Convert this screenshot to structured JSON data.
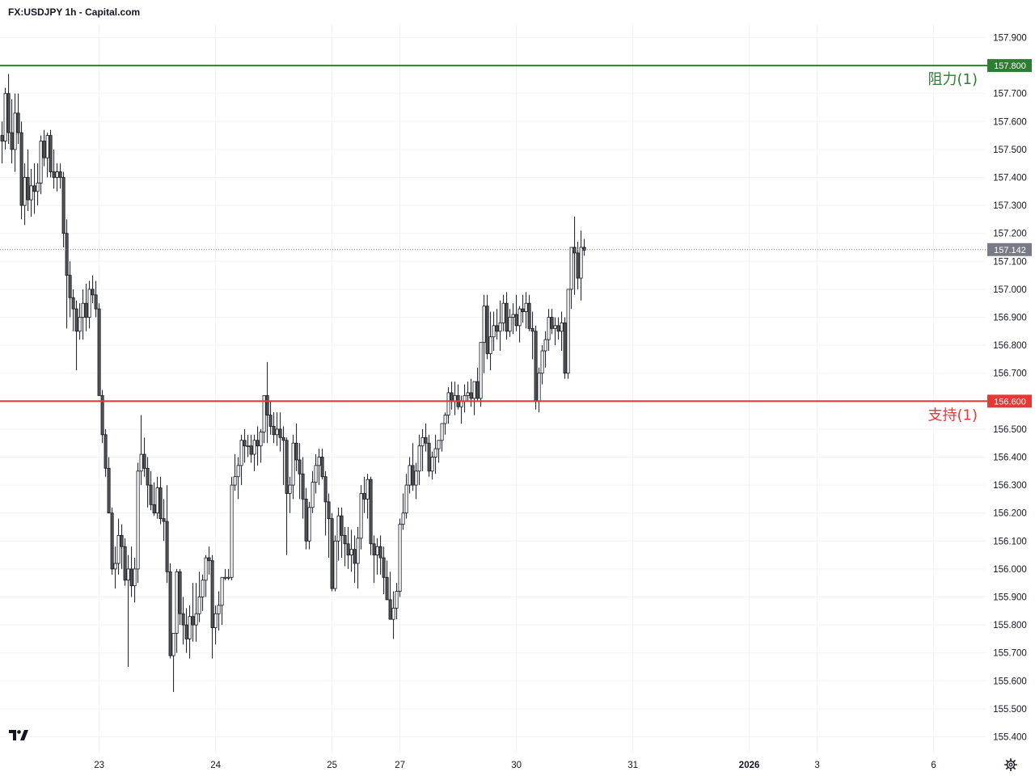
{
  "title": "FX:USDJPY 1h - Capital.com",
  "chart_data": {
    "type": "candlestick",
    "title": "FX:USDJPY 1h - Capital.com",
    "ylim": [
      155.36,
      157.97
    ],
    "y_ticks": [
      "157.900",
      "157.800",
      "157.700",
      "157.600",
      "157.500",
      "157.400",
      "157.300",
      "157.200",
      "157.100",
      "157.000",
      "156.900",
      "156.800",
      "156.700",
      "156.600",
      "156.500",
      "156.400",
      "156.300",
      "156.200",
      "156.100",
      "156.000",
      "155.900",
      "155.800",
      "155.700",
      "155.600",
      "155.500",
      "155.400"
    ],
    "x_ticks": [
      {
        "label": "23",
        "index": 30,
        "bold": false
      },
      {
        "label": "24",
        "index": 66,
        "bold": false
      },
      {
        "label": "25",
        "index": 102,
        "bold": false
      },
      {
        "label": "27",
        "index": 123,
        "bold": false
      },
      {
        "label": "30",
        "index": 159,
        "bold": false
      },
      {
        "label": "31",
        "index": 195,
        "bold": false
      },
      {
        "label": "2026",
        "index": 231,
        "bold": true
      },
      {
        "label": "3",
        "index": 252,
        "bold": false
      },
      {
        "label": "6",
        "index": 288,
        "bold": false
      }
    ],
    "grid": true,
    "last_price": "157.142",
    "levels": [
      {
        "name": "阻力(1)",
        "price": 157.8,
        "price_label": "157.800",
        "color": "#2e7d32"
      },
      {
        "name": "支持(1)",
        "price": 156.6,
        "price_label": "156.600",
        "color": "#e53935"
      }
    ],
    "candles_ohlc": [
      [
        157.55,
        157.6,
        157.45,
        157.53
      ],
      [
        157.53,
        157.72,
        157.5,
        157.7
      ],
      [
        157.7,
        157.77,
        157.52,
        157.56
      ],
      [
        157.56,
        157.68,
        157.45,
        157.5
      ],
      [
        157.5,
        157.7,
        157.42,
        157.63
      ],
      [
        157.63,
        157.7,
        157.52,
        157.56
      ],
      [
        157.56,
        157.6,
        157.25,
        157.3
      ],
      [
        157.3,
        157.45,
        157.23,
        157.4
      ],
      [
        157.4,
        157.5,
        157.28,
        157.32
      ],
      [
        157.32,
        157.43,
        157.26,
        157.37
      ],
      [
        157.37,
        157.45,
        157.27,
        157.35
      ],
      [
        157.35,
        157.45,
        157.3,
        157.38
      ],
      [
        157.38,
        157.55,
        157.34,
        157.53
      ],
      [
        157.53,
        157.57,
        157.44,
        157.47
      ],
      [
        157.47,
        157.56,
        157.4,
        157.55
      ],
      [
        157.55,
        157.57,
        157.4,
        157.42
      ],
      [
        157.42,
        157.5,
        157.36,
        157.4
      ],
      [
        157.4,
        157.45,
        157.35,
        157.42
      ],
      [
        157.42,
        157.45,
        157.36,
        157.4
      ],
      [
        157.4,
        157.42,
        157.15,
        157.2
      ],
      [
        157.2,
        157.25,
        156.86,
        157.05
      ],
      [
        157.05,
        157.1,
        156.9,
        156.97
      ],
      [
        156.97,
        157.0,
        156.85,
        156.93
      ],
      [
        156.93,
        156.96,
        156.71,
        156.85
      ],
      [
        156.85,
        156.95,
        156.82,
        156.9
      ],
      [
        156.9,
        157.0,
        156.82,
        156.95
      ],
      [
        156.95,
        157.02,
        156.85,
        156.9
      ],
      [
        156.9,
        157.03,
        156.86,
        157.0
      ],
      [
        157.0,
        157.05,
        156.95,
        156.98
      ],
      [
        156.98,
        157.03,
        156.9,
        156.93
      ],
      [
        156.93,
        156.95,
        156.62,
        156.62
      ],
      [
        156.62,
        156.64,
        156.45,
        156.48
      ],
      [
        156.48,
        156.5,
        156.33,
        156.36
      ],
      [
        156.36,
        156.4,
        156.2,
        156.2
      ],
      [
        156.2,
        156.22,
        155.98,
        156.0
      ],
      [
        156.0,
        156.08,
        155.93,
        156.02
      ],
      [
        156.02,
        156.18,
        155.98,
        156.12
      ],
      [
        156.12,
        156.16,
        156.0,
        156.08
      ],
      [
        156.08,
        156.11,
        155.94,
        155.96
      ],
      [
        155.96,
        156.05,
        155.65,
        156.0
      ],
      [
        156.0,
        156.08,
        155.9,
        155.94
      ],
      [
        155.94,
        156.04,
        155.88,
        156.0
      ],
      [
        156.0,
        156.38,
        155.95,
        156.35
      ],
      [
        156.35,
        156.55,
        156.3,
        156.41
      ],
      [
        156.41,
        156.47,
        156.33,
        156.36
      ],
      [
        156.36,
        156.4,
        156.22,
        156.3
      ],
      [
        156.3,
        156.35,
        156.21,
        156.23
      ],
      [
        156.23,
        156.31,
        156.19,
        156.2
      ],
      [
        156.2,
        156.33,
        156.18,
        156.29
      ],
      [
        156.29,
        156.33,
        156.16,
        156.18
      ],
      [
        156.18,
        156.25,
        156.1,
        156.17
      ],
      [
        156.17,
        156.3,
        155.95,
        155.99
      ],
      [
        155.99,
        156.02,
        155.68,
        155.69
      ],
      [
        155.69,
        155.75,
        155.56,
        155.77
      ],
      [
        155.77,
        156.0,
        155.7,
        155.99
      ],
      [
        155.99,
        156.0,
        155.8,
        155.84
      ],
      [
        155.84,
        155.9,
        155.73,
        155.8
      ],
      [
        155.8,
        155.86,
        155.7,
        155.75
      ],
      [
        155.75,
        155.87,
        155.68,
        155.83
      ],
      [
        155.83,
        155.95,
        155.74,
        155.8
      ],
      [
        155.8,
        155.95,
        155.74,
        155.84
      ],
      [
        155.84,
        155.99,
        155.81,
        155.9
      ],
      [
        155.9,
        155.98,
        155.85,
        155.96
      ],
      [
        155.96,
        156.05,
        155.9,
        156.04
      ],
      [
        156.04,
        156.08,
        155.98,
        156.03
      ],
      [
        156.03,
        156.05,
        155.68,
        155.79
      ],
      [
        155.79,
        155.87,
        155.73,
        155.84
      ],
      [
        155.84,
        155.92,
        155.78,
        155.87
      ],
      [
        155.87,
        155.95,
        155.8,
        155.97
      ],
      [
        155.97,
        156.0,
        155.96,
        155.97
      ],
      [
        155.97,
        156.0,
        155.96,
        155.97
      ],
      [
        155.97,
        156.33,
        155.96,
        156.3
      ],
      [
        156.3,
        156.41,
        156.28,
        156.33
      ],
      [
        156.33,
        156.4,
        156.25,
        156.37
      ],
      [
        156.37,
        156.48,
        156.3,
        156.46
      ],
      [
        156.46,
        156.5,
        156.38,
        156.44
      ],
      [
        156.44,
        156.48,
        156.4,
        156.44
      ],
      [
        156.44,
        156.48,
        156.38,
        156.41
      ],
      [
        156.41,
        156.48,
        156.35,
        156.46
      ],
      [
        156.46,
        156.51,
        156.37,
        156.44
      ],
      [
        156.44,
        156.5,
        156.38,
        156.49
      ],
      [
        156.49,
        156.62,
        156.45,
        156.62
      ],
      [
        156.62,
        156.74,
        156.45,
        156.55
      ],
      [
        156.55,
        156.6,
        156.48,
        156.51
      ],
      [
        156.51,
        156.56,
        156.45,
        156.48
      ],
      [
        156.48,
        156.56,
        156.44,
        156.5
      ],
      [
        156.5,
        156.56,
        156.42,
        156.47
      ],
      [
        156.47,
        156.51,
        156.3,
        156.46
      ],
      [
        156.46,
        156.47,
        156.05,
        156.27
      ],
      [
        156.27,
        156.33,
        156.2,
        156.3
      ],
      [
        156.3,
        156.48,
        156.25,
        156.45
      ],
      [
        156.45,
        156.52,
        156.35,
        156.39
      ],
      [
        156.39,
        156.45,
        156.25,
        156.34
      ],
      [
        156.34,
        156.4,
        156.18,
        156.25
      ],
      [
        156.25,
        156.29,
        156.07,
        156.1
      ],
      [
        156.1,
        156.24,
        156.07,
        156.22
      ],
      [
        156.22,
        156.35,
        156.2,
        156.31
      ],
      [
        156.31,
        156.41,
        156.27,
        156.37
      ],
      [
        156.37,
        156.43,
        156.3,
        156.4
      ],
      [
        156.4,
        156.43,
        156.32,
        156.33
      ],
      [
        156.33,
        156.35,
        156.12,
        156.24
      ],
      [
        156.24,
        156.27,
        156.04,
        156.18
      ],
      [
        156.18,
        156.2,
        155.92,
        155.93
      ],
      [
        155.93,
        156.12,
        155.92,
        156.1
      ],
      [
        156.1,
        156.22,
        156.03,
        156.19
      ],
      [
        156.19,
        156.22,
        156.04,
        156.12
      ],
      [
        156.12,
        156.15,
        156.01,
        156.09
      ],
      [
        156.09,
        156.15,
        156.0,
        156.05
      ],
      [
        156.05,
        156.14,
        155.99,
        156.07
      ],
      [
        156.07,
        156.12,
        155.95,
        156.02
      ],
      [
        156.02,
        156.15,
        155.93,
        156.11
      ],
      [
        156.11,
        156.3,
        156.07,
        156.27
      ],
      [
        156.27,
        156.33,
        156.2,
        156.25
      ],
      [
        156.25,
        156.34,
        156.18,
        156.32
      ],
      [
        156.32,
        156.33,
        156.05,
        156.09
      ],
      [
        156.09,
        156.12,
        155.95,
        156.05
      ],
      [
        156.05,
        156.11,
        155.98,
        156.08
      ],
      [
        156.08,
        156.12,
        155.98,
        156.04
      ],
      [
        156.04,
        156.08,
        155.91,
        155.97
      ],
      [
        155.97,
        156.03,
        155.9,
        155.89
      ],
      [
        155.89,
        155.99,
        155.82,
        155.82
      ],
      [
        155.82,
        155.92,
        155.75,
        155.86
      ],
      [
        155.86,
        155.95,
        155.82,
        155.92
      ],
      [
        155.92,
        156.18,
        155.9,
        156.16
      ],
      [
        156.16,
        156.27,
        156.14,
        156.2
      ],
      [
        156.2,
        156.34,
        156.18,
        156.3
      ],
      [
        156.3,
        156.4,
        156.27,
        156.37
      ],
      [
        156.37,
        156.45,
        156.28,
        156.3
      ],
      [
        156.3,
        156.38,
        156.25,
        156.35
      ],
      [
        156.35,
        156.48,
        156.3,
        156.44
      ],
      [
        156.44,
        156.5,
        156.35,
        156.47
      ],
      [
        156.47,
        156.52,
        156.42,
        156.45
      ],
      [
        156.45,
        156.48,
        156.33,
        156.35
      ],
      [
        156.35,
        156.42,
        156.32,
        156.4
      ],
      [
        156.4,
        156.48,
        156.34,
        156.43
      ],
      [
        156.43,
        156.46,
        156.38,
        156.46
      ],
      [
        156.46,
        156.5,
        156.42,
        156.52
      ],
      [
        156.52,
        156.56,
        156.48,
        156.55
      ],
      [
        156.55,
        156.65,
        156.52,
        156.63
      ],
      [
        156.63,
        156.67,
        156.57,
        156.6
      ],
      [
        156.6,
        156.67,
        156.55,
        156.62
      ],
      [
        156.62,
        156.66,
        156.57,
        156.58
      ],
      [
        156.58,
        156.62,
        156.52,
        156.6
      ],
      [
        156.6,
        156.66,
        156.56,
        156.62
      ],
      [
        156.62,
        156.67,
        156.6,
        156.63
      ],
      [
        156.63,
        156.68,
        156.58,
        156.61
      ],
      [
        156.61,
        156.65,
        156.55,
        156.67
      ],
      [
        156.67,
        156.72,
        156.6,
        156.61
      ],
      [
        156.61,
        156.81,
        156.58,
        156.81
      ],
      [
        156.81,
        156.98,
        156.7,
        156.94
      ],
      [
        156.94,
        156.98,
        156.75,
        156.77
      ],
      [
        156.77,
        156.92,
        156.71,
        156.83
      ],
      [
        156.83,
        156.92,
        156.78,
        156.87
      ],
      [
        156.87,
        156.93,
        156.82,
        156.85
      ],
      [
        156.85,
        156.96,
        156.78,
        156.88
      ],
      [
        156.88,
        156.98,
        156.85,
        156.95
      ],
      [
        156.95,
        156.99,
        156.82,
        156.85
      ],
      [
        156.85,
        156.93,
        156.83,
        156.9
      ],
      [
        156.9,
        156.95,
        156.84,
        156.91
      ],
      [
        156.91,
        156.98,
        156.85,
        156.87
      ],
      [
        156.87,
        156.94,
        156.81,
        156.93
      ],
      [
        156.93,
        156.98,
        156.88,
        156.92
      ],
      [
        156.92,
        156.99,
        156.86,
        156.95
      ],
      [
        156.95,
        156.98,
        156.85,
        156.86
      ],
      [
        156.86,
        156.92,
        156.75,
        156.85
      ],
      [
        156.85,
        156.87,
        156.57,
        156.6
      ],
      [
        156.6,
        156.72,
        156.56,
        156.7
      ],
      [
        156.7,
        156.8,
        156.66,
        156.78
      ],
      [
        156.78,
        156.85,
        156.72,
        156.82
      ],
      [
        156.82,
        156.93,
        156.78,
        156.9
      ],
      [
        156.9,
        156.93,
        156.84,
        156.86
      ],
      [
        156.86,
        156.9,
        156.8,
        156.87
      ],
      [
        156.87,
        156.9,
        156.82,
        156.85
      ],
      [
        156.85,
        156.92,
        156.78,
        156.88
      ],
      [
        156.88,
        156.9,
        156.68,
        156.7
      ],
      [
        156.7,
        156.98,
        156.68,
        157.0
      ],
      [
        157.0,
        157.1,
        156.93,
        157.15
      ],
      [
        157.15,
        157.26,
        156.98,
        157.13
      ],
      [
        157.13,
        157.17,
        157.0,
        157.04
      ],
      [
        157.04,
        157.21,
        156.96,
        157.15
      ],
      [
        157.15,
        157.18,
        157.12,
        157.14
      ]
    ]
  }
}
